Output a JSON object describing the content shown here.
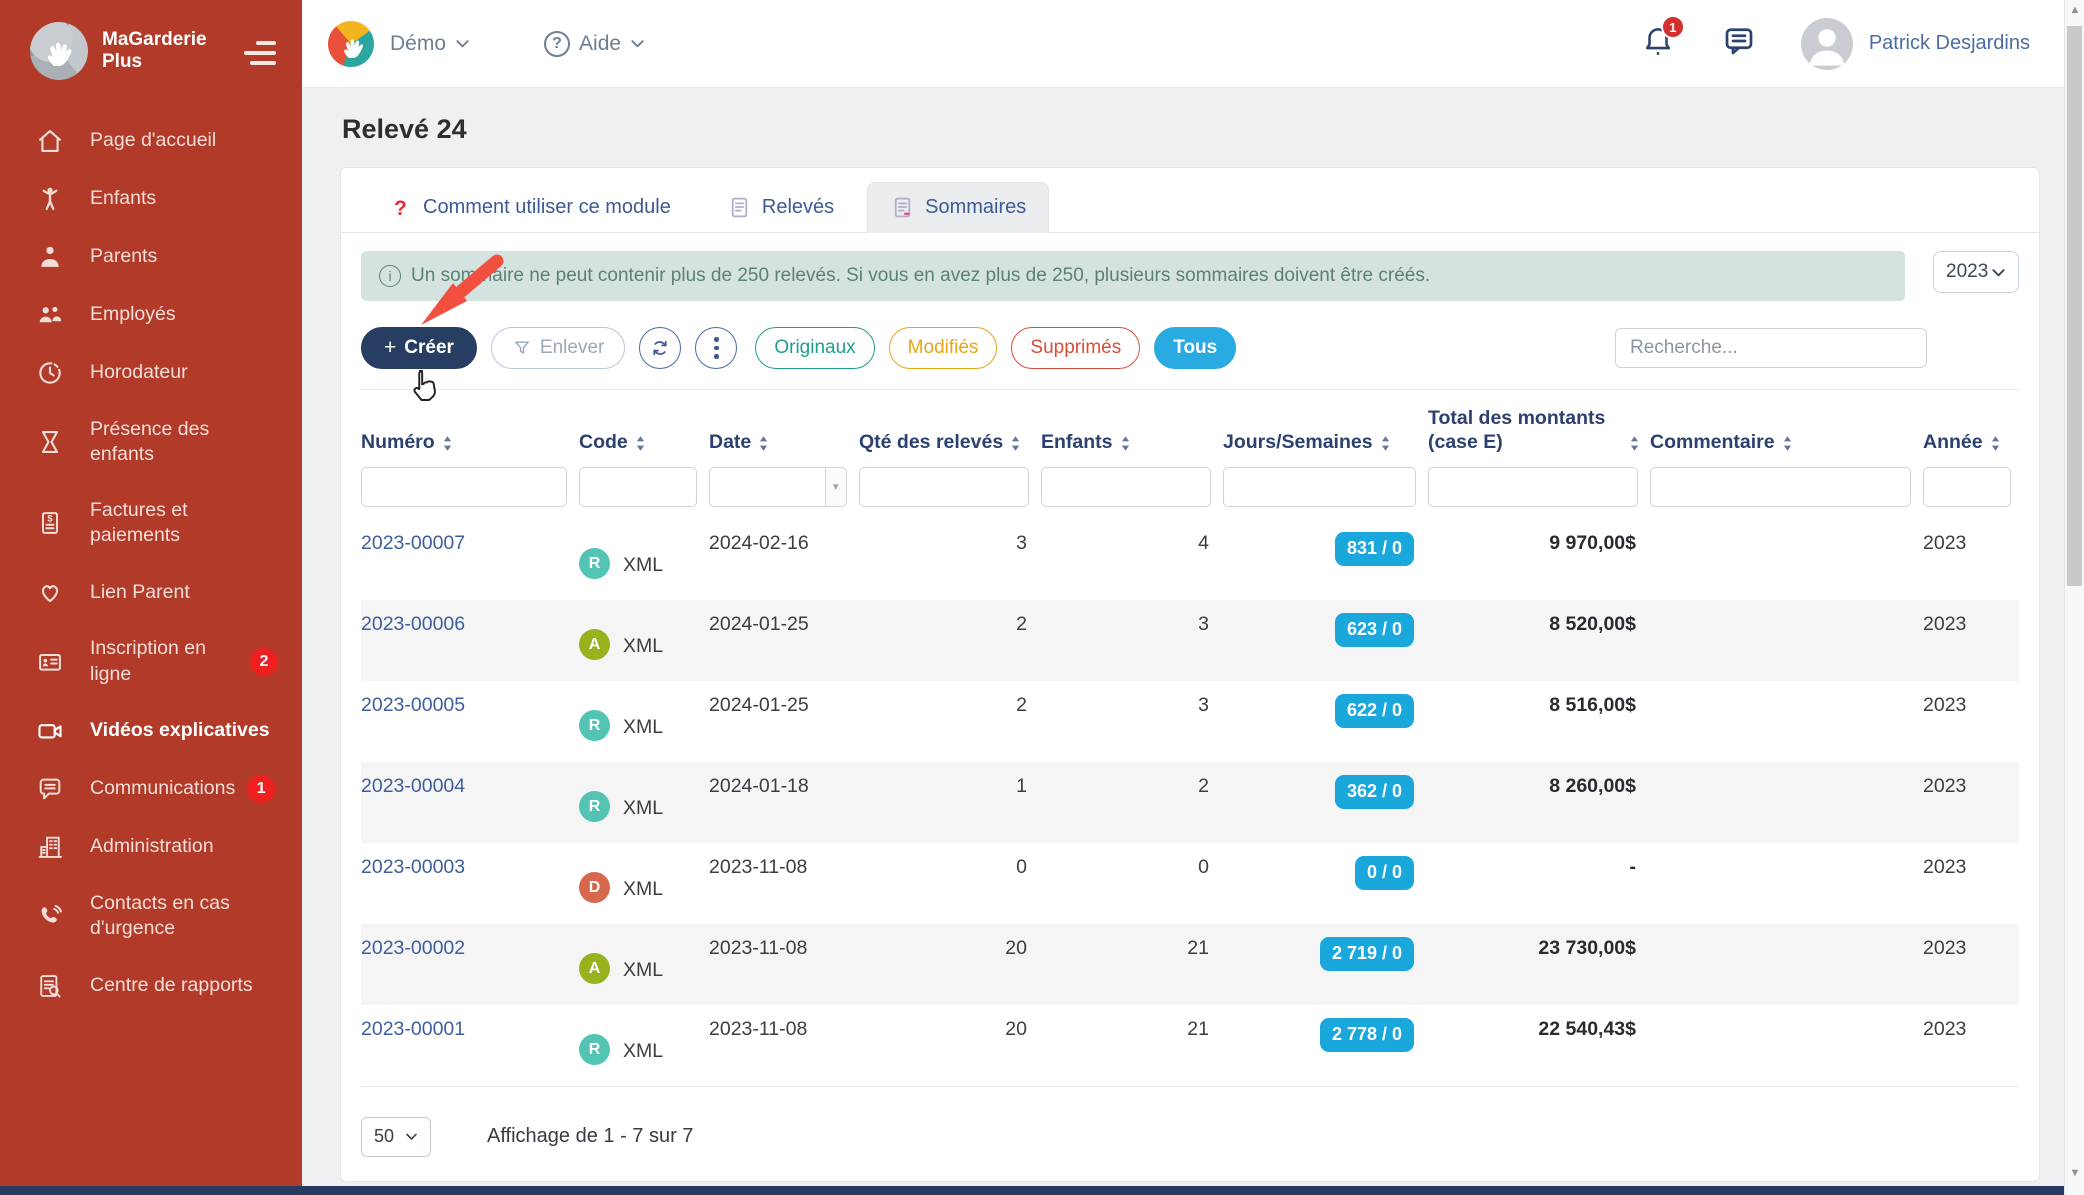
{
  "sidebar": {
    "logo_line1": "MaGarderie",
    "logo_line2": "Plus",
    "items": [
      {
        "label": "Page d'accueil",
        "icon": "home"
      },
      {
        "label": "Enfants",
        "icon": "child"
      },
      {
        "label": "Parents",
        "icon": "parent"
      },
      {
        "label": "Employés",
        "icon": "people"
      },
      {
        "label": "Horodateur",
        "icon": "clock"
      },
      {
        "label": "Présence des enfants",
        "icon": "hourglass"
      },
      {
        "label": "Factures et paiements",
        "icon": "invoice"
      },
      {
        "label": "Lien Parent",
        "icon": "heart"
      },
      {
        "label": "Inscription en ligne",
        "icon": "idcard",
        "badge": "2"
      },
      {
        "label": "Vidéos explicatives",
        "icon": "video",
        "active": true
      },
      {
        "label": "Communications",
        "icon": "chatlines",
        "badge": "1"
      },
      {
        "label": "Administration",
        "icon": "building"
      },
      {
        "label": "Contacts en cas d'urgence",
        "icon": "phone"
      },
      {
        "label": "Centre de rapports",
        "icon": "report"
      }
    ]
  },
  "topbar": {
    "org_label": "Démo",
    "help_label": "Aide",
    "notification_count": "1",
    "user_name": "Patrick Desjardins"
  },
  "page": {
    "title": "Relevé 24",
    "tabs": [
      {
        "label": "Comment utiliser ce module",
        "icon": "question"
      },
      {
        "label": "Relevés",
        "icon": "doc"
      },
      {
        "label": "Sommaires",
        "icon": "doc2",
        "active": true
      }
    ],
    "banner": "Un sommaire ne peut contenir plus de 250 relevés. Si vous en avez plus de 250, plusieurs sommaires doivent être créés.",
    "year": "2023"
  },
  "toolbar": {
    "create_label": "Créer",
    "remove_label": "Enlever",
    "filters": [
      {
        "label": "Originaux",
        "color": "#1f9e8e"
      },
      {
        "label": "Modifiés",
        "color": "#e7a514"
      },
      {
        "label": "Supprimés",
        "color": "#dc4b38"
      },
      {
        "label": "Tous",
        "color": "#29abe2",
        "solid": true
      }
    ],
    "search_placeholder": "Recherche..."
  },
  "table": {
    "columns": [
      {
        "label": "Numéro"
      },
      {
        "label": "Code"
      },
      {
        "label": "Date"
      },
      {
        "label": "Qté des relevés"
      },
      {
        "label": "Enfants"
      },
      {
        "label": "Jours/Semaines"
      },
      {
        "label": "Total des montants (case E)"
      },
      {
        "label": "Commentaire"
      },
      {
        "label": "Année"
      }
    ],
    "rows": [
      {
        "numero": "2023-00007",
        "code_letter": "R",
        "code_color": "#53c4b3",
        "code": "XML",
        "date": "2024-02-16",
        "qte": "3",
        "enfants": "4",
        "jours": "831 / 0",
        "total": "9 970,00$",
        "commentaire": "",
        "annee": "2023"
      },
      {
        "numero": "2023-00006",
        "code_letter": "A",
        "code_color": "#96b31e",
        "code": "XML",
        "date": "2024-01-25",
        "qte": "2",
        "enfants": "3",
        "jours": "623 / 0",
        "total": "8 520,00$",
        "commentaire": "",
        "annee": "2023"
      },
      {
        "numero": "2023-00005",
        "code_letter": "R",
        "code_color": "#53c4b3",
        "code": "XML",
        "date": "2024-01-25",
        "qte": "2",
        "enfants": "3",
        "jours": "622 / 0",
        "total": "8 516,00$",
        "commentaire": "",
        "annee": "2023"
      },
      {
        "numero": "2023-00004",
        "code_letter": "R",
        "code_color": "#53c4b3",
        "code": "XML",
        "date": "2024-01-18",
        "qte": "1",
        "enfants": "2",
        "jours": "362 / 0",
        "total": "8 260,00$",
        "commentaire": "",
        "annee": "2023"
      },
      {
        "numero": "2023-00003",
        "code_letter": "D",
        "code_color": "#d7684e",
        "code": "XML",
        "date": "2023-11-08",
        "qte": "0",
        "enfants": "0",
        "jours": "0 / 0",
        "total": "-",
        "commentaire": "",
        "annee": "2023"
      },
      {
        "numero": "2023-00002",
        "code_letter": "A",
        "code_color": "#96b31e",
        "code": "XML",
        "date": "2023-11-08",
        "qte": "20",
        "enfants": "21",
        "jours": "2 719 / 0",
        "total": "23 730,00$",
        "commentaire": "",
        "annee": "2023"
      },
      {
        "numero": "2023-00001",
        "code_letter": "R",
        "code_color": "#53c4b3",
        "code": "XML",
        "date": "2023-11-08",
        "qte": "20",
        "enfants": "21",
        "jours": "2 778 / 0",
        "total": "22 540,43$",
        "commentaire": "",
        "annee": "2023"
      }
    ]
  },
  "footer": {
    "page_size": "50",
    "display_text": "Affichage de 1 - 7 sur 7"
  }
}
